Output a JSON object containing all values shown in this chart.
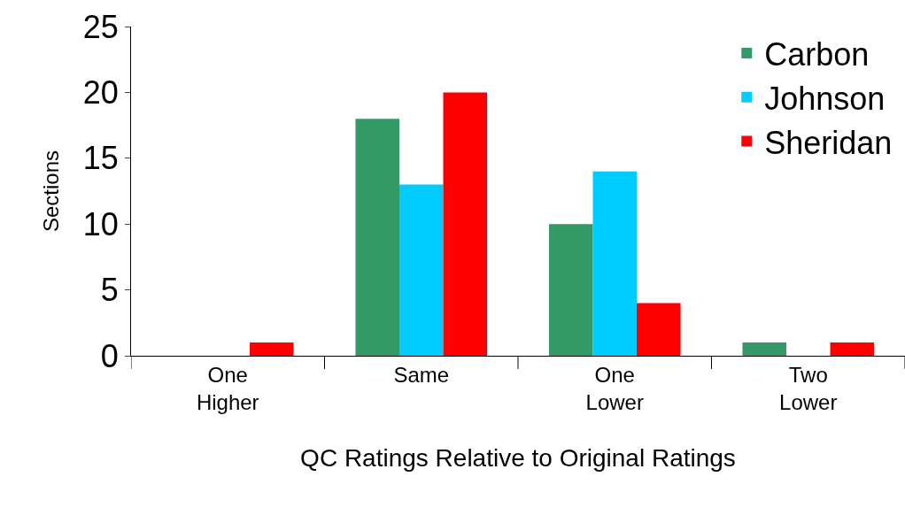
{
  "chart_data": {
    "type": "bar",
    "xlabel": "QC Ratings Relative to Original Ratings",
    "ylabel": "Sections",
    "categories": [
      "One Higher",
      "Same",
      "One Lower",
      "Two Lower"
    ],
    "series": [
      {
        "name": "Carbon",
        "color": "#339966",
        "values": [
          0,
          18,
          10,
          1
        ]
      },
      {
        "name": "Johnson",
        "color": "#00ccff",
        "values": [
          0,
          13,
          14,
          0
        ]
      },
      {
        "name": "Sheridan",
        "color": "#ff0000",
        "values": [
          1,
          20,
          4,
          1
        ]
      }
    ],
    "ylim": [
      0,
      25
    ],
    "yticks": [
      0,
      5,
      10,
      15,
      20,
      25
    ],
    "legend": "top right"
  }
}
